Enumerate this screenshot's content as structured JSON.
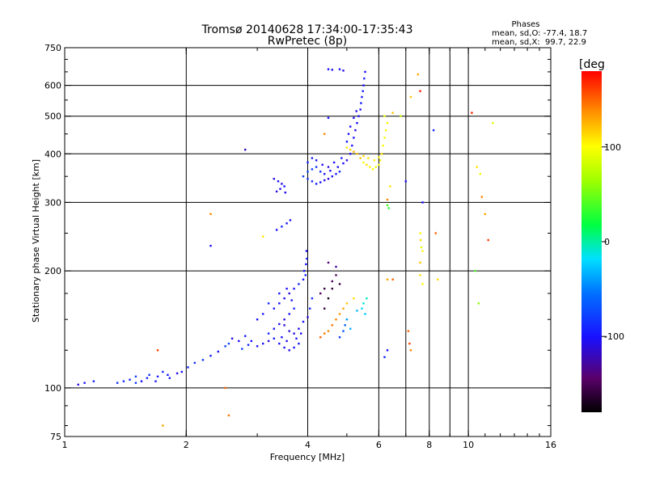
{
  "chart_data": {
    "type": "scatter",
    "title": "Tromsø 20140628 17:34:00-17:35:43",
    "subtitle": "RwPretec (8p)",
    "xlabel": "Frequency [MHz]",
    "ylabel": "Stationary phase Virtual Height [km]",
    "x_scale": "log",
    "y_scale": "log",
    "xlim": [
      1,
      16
    ],
    "ylim": [
      75,
      750
    ],
    "x_ticks": [
      1,
      2,
      4,
      6,
      8,
      10,
      16
    ],
    "x_tick_labels": [
      "1",
      "2",
      "4",
      "6",
      "8",
      "10",
      "16"
    ],
    "x_gridlines": [
      2,
      4,
      6,
      7,
      8,
      9,
      10
    ],
    "y_ticks": [
      75,
      100,
      200,
      300,
      400,
      500,
      600,
      750
    ],
    "y_tick_labels": [
      "75",
      "100",
      "200",
      "300",
      "400",
      "500",
      "600",
      "750"
    ],
    "y_gridlines": [
      100,
      200,
      300,
      400,
      500,
      600
    ],
    "grid": true,
    "stats": {
      "header": "Phases",
      "line_o": "mean, sd,O: -77.4, 18.7",
      "line_x": "mean, sd,X:  99.7, 22.9"
    },
    "colorbar": {
      "label": "[deg",
      "range": [
        -180,
        180
      ],
      "ticks": [
        100,
        0,
        -100
      ],
      "tick_labels": [
        "100",
        "0",
        "-100"
      ]
    },
    "series": [
      {
        "points": [
          [
            1.08,
            102,
            -110
          ],
          [
            1.12,
            103,
            -100
          ],
          [
            1.18,
            104,
            -95
          ],
          [
            1.35,
            103,
            -85
          ],
          [
            1.4,
            104,
            -88
          ],
          [
            1.45,
            105,
            -92
          ],
          [
            1.5,
            103,
            -84
          ],
          [
            1.55,
            104,
            -100
          ],
          [
            1.6,
            106,
            -90
          ],
          [
            1.7,
            107,
            -95
          ],
          [
            1.8,
            108,
            -100
          ],
          [
            1.9,
            109,
            -105
          ],
          [
            1.5,
            107,
            -80
          ],
          [
            1.62,
            108,
            -86
          ],
          [
            1.75,
            110,
            -90
          ],
          [
            1.68,
            104,
            -97
          ],
          [
            1.82,
            106,
            -94
          ],
          [
            1.95,
            110,
            -100
          ],
          [
            2.02,
            113,
            -90
          ],
          [
            2.1,
            116,
            -85
          ],
          [
            2.2,
            118,
            -80
          ],
          [
            2.3,
            121,
            -95
          ],
          [
            2.4,
            124,
            -100
          ],
          [
            2.5,
            128,
            -80
          ],
          [
            2.55,
            130,
            -75
          ],
          [
            2.6,
            134,
            -110
          ],
          [
            2.7,
            132,
            -105
          ],
          [
            2.8,
            136,
            -95
          ],
          [
            2.9,
            132,
            -100
          ],
          [
            2.75,
            126,
            -80
          ],
          [
            2.85,
            129,
            -90
          ],
          [
            3.0,
            128,
            -105
          ],
          [
            3.1,
            130,
            -100
          ],
          [
            3.2,
            132,
            -110
          ],
          [
            3.3,
            134,
            -95
          ],
          [
            3.4,
            130,
            -100
          ],
          [
            3.5,
            127,
            -105
          ],
          [
            3.6,
            125,
            -108
          ],
          [
            3.7,
            127,
            -100
          ],
          [
            3.8,
            130,
            -95
          ],
          [
            3.2,
            138,
            -92
          ],
          [
            3.3,
            142,
            -100
          ],
          [
            3.4,
            146,
            -105
          ],
          [
            3.5,
            150,
            -110
          ],
          [
            3.6,
            155,
            -100
          ],
          [
            3.7,
            160,
            -90
          ],
          [
            3.3,
            160,
            -95
          ],
          [
            3.4,
            165,
            -100
          ],
          [
            3.5,
            170,
            -105
          ],
          [
            3.6,
            175,
            -110
          ],
          [
            3.7,
            180,
            -100
          ],
          [
            3.8,
            185,
            -90
          ],
          [
            3.9,
            190,
            -100
          ],
          [
            3.95,
            195,
            -95
          ],
          [
            3.92,
            200,
            -100
          ],
          [
            3.96,
            208,
            -100
          ],
          [
            3.98,
            215,
            -95
          ],
          [
            3.97,
            225,
            -100
          ],
          [
            3.5,
            145,
            -115
          ],
          [
            3.6,
            140,
            -112
          ],
          [
            3.7,
            138,
            -108
          ],
          [
            3.8,
            142,
            -104
          ],
          [
            3.9,
            148,
            -100
          ],
          [
            4.0,
            152,
            -110
          ],
          [
            3.0,
            150,
            -100
          ],
          [
            3.1,
            155,
            -95
          ],
          [
            3.2,
            165,
            -88
          ],
          [
            3.4,
            175,
            -98
          ],
          [
            3.55,
            180,
            -102
          ],
          [
            3.65,
            168,
            -106
          ],
          [
            3.45,
            135,
            -100
          ],
          [
            3.55,
            132,
            -110
          ],
          [
            3.75,
            134,
            -96
          ],
          [
            3.85,
            138,
            -104
          ],
          [
            4.05,
            160,
            -90
          ],
          [
            4.1,
            170,
            -85
          ],
          [
            3.35,
            255,
            -100
          ],
          [
            3.45,
            260,
            -95
          ],
          [
            3.55,
            265,
            -100
          ],
          [
            3.62,
            270,
            -100
          ],
          [
            3.35,
            320,
            -110
          ],
          [
            3.42,
            325,
            -105
          ],
          [
            3.5,
            330,
            -100
          ],
          [
            3.45,
            335,
            -110
          ],
          [
            3.52,
            318,
            -106
          ],
          [
            3.38,
            340,
            -100
          ],
          [
            3.3,
            345,
            -112
          ],
          [
            3.9,
            350,
            -80
          ],
          [
            4.0,
            345,
            -85
          ],
          [
            4.1,
            340,
            -90
          ],
          [
            4.2,
            335,
            -95
          ],
          [
            4.3,
            338,
            -100
          ],
          [
            4.4,
            342,
            -105
          ],
          [
            4.5,
            345,
            -110
          ],
          [
            4.6,
            350,
            -100
          ],
          [
            4.7,
            355,
            -95
          ],
          [
            4.8,
            360,
            -90
          ],
          [
            4.0,
            360,
            -75
          ],
          [
            4.1,
            365,
            -80
          ],
          [
            4.2,
            370,
            -85
          ],
          [
            4.3,
            360,
            -90
          ],
          [
            4.4,
            355,
            -95
          ],
          [
            4.55,
            362,
            -100
          ],
          [
            4.75,
            370,
            -105
          ],
          [
            4.9,
            378,
            -100
          ],
          [
            5.0,
            385,
            -110
          ],
          [
            4.0,
            380,
            -90
          ],
          [
            4.1,
            390,
            -95
          ],
          [
            4.2,
            385,
            -100
          ],
          [
            4.35,
            375,
            -105
          ],
          [
            4.5,
            370,
            -110
          ],
          [
            4.65,
            380,
            -100
          ],
          [
            4.85,
            390,
            -95
          ],
          [
            5.1,
            400,
            -100
          ],
          [
            5.15,
            420,
            -105
          ],
          [
            5.2,
            440,
            -100
          ],
          [
            5.25,
            460,
            -110
          ],
          [
            5.3,
            480,
            -100
          ],
          [
            5.35,
            500,
            -105
          ],
          [
            5.4,
            520,
            -100
          ],
          [
            5.42,
            540,
            -95
          ],
          [
            5.45,
            560,
            -100
          ],
          [
            5.48,
            580,
            -95
          ],
          [
            5.5,
            600,
            -100
          ],
          [
            5.52,
            625,
            -95
          ],
          [
            5.55,
            650,
            -100
          ],
          [
            5.0,
            430,
            -95
          ],
          [
            5.05,
            450,
            -100
          ],
          [
            5.1,
            470,
            -105
          ],
          [
            5.2,
            495,
            -100
          ],
          [
            5.28,
            515,
            -108
          ],
          [
            4.5,
            660,
            -100
          ],
          [
            4.6,
            658,
            -105
          ],
          [
            4.8,
            660,
            -100
          ],
          [
            4.9,
            655,
            -110
          ],
          [
            5.5,
            165,
            -10
          ],
          [
            5.6,
            170,
            -5
          ],
          [
            5.45,
            160,
            -20
          ],
          [
            5.3,
            158,
            -30
          ],
          [
            5.55,
            155,
            -25
          ],
          [
            5.0,
            150,
            -40
          ],
          [
            4.95,
            145,
            -60
          ],
          [
            4.9,
            140,
            -70
          ],
          [
            4.8,
            135,
            -80
          ],
          [
            5.1,
            142,
            -35
          ],
          [
            4.3,
            135,
            150
          ],
          [
            4.4,
            138,
            145
          ],
          [
            4.5,
            140,
            140
          ],
          [
            4.6,
            145,
            145
          ],
          [
            4.7,
            150,
            140
          ],
          [
            4.8,
            155,
            135
          ],
          [
            4.9,
            160,
            130
          ],
          [
            5.0,
            165,
            120
          ],
          [
            5.2,
            170,
            110
          ],
          [
            4.4,
            160,
            -160
          ],
          [
            4.5,
            170,
            -170
          ],
          [
            4.3,
            175,
            -150
          ],
          [
            4.6,
            180,
            -160
          ],
          [
            4.8,
            185,
            -160
          ],
          [
            4.7,
            195,
            -150
          ],
          [
            5.5,
            380,
            100
          ],
          [
            5.6,
            375,
            110
          ],
          [
            5.7,
            370,
            105
          ],
          [
            5.8,
            365,
            100
          ],
          [
            5.9,
            370,
            95
          ],
          [
            6.0,
            375,
            100
          ],
          [
            6.05,
            385,
            105
          ],
          [
            6.1,
            400,
            110
          ],
          [
            6.15,
            420,
            100
          ],
          [
            6.2,
            440,
            95
          ],
          [
            6.25,
            460,
            105
          ],
          [
            6.3,
            480,
            100
          ],
          [
            6.2,
            500,
            95
          ],
          [
            5.4,
            390,
            120
          ],
          [
            5.5,
            395,
            115
          ],
          [
            5.65,
            390,
            110
          ],
          [
            5.85,
            385,
            105
          ],
          [
            6.0,
            392,
            100
          ],
          [
            5.3,
            400,
            120
          ],
          [
            5.2,
            405,
            125
          ],
          [
            5.1,
            410,
            115
          ],
          [
            5.0,
            415,
            110
          ],
          [
            6.5,
            510,
            120
          ],
          [
            6.8,
            500,
            80
          ],
          [
            7.2,
            560,
            120
          ],
          [
            7.5,
            640,
            130
          ],
          [
            7.6,
            580,
            170
          ],
          [
            6.3,
            305,
            140
          ],
          [
            6.4,
            330,
            110
          ],
          [
            6.3,
            295,
            40
          ],
          [
            6.35,
            290,
            30
          ],
          [
            7.6,
            250,
            100
          ],
          [
            7.62,
            240,
            110
          ],
          [
            7.65,
            230,
            90
          ],
          [
            7.7,
            225,
            105
          ],
          [
            7.6,
            210,
            120
          ],
          [
            7.6,
            195,
            110
          ],
          [
            7.7,
            185,
            100
          ],
          [
            6.3,
            190,
            130
          ],
          [
            6.5,
            190,
            150
          ],
          [
            7.1,
            140,
            150
          ],
          [
            7.15,
            130,
            160
          ],
          [
            7.2,
            125,
            140
          ],
          [
            6.3,
            125,
            -100
          ],
          [
            6.2,
            120,
            -90
          ],
          [
            7.0,
            340,
            -100
          ],
          [
            7.7,
            300,
            -100
          ],
          [
            8.2,
            460,
            -90
          ],
          [
            8.3,
            250,
            150
          ],
          [
            8.4,
            190,
            110
          ],
          [
            10.5,
            370,
            110
          ],
          [
            10.7,
            355,
            95
          ],
          [
            10.8,
            310,
            140
          ],
          [
            11.0,
            280,
            130
          ],
          [
            11.5,
            480,
            90
          ],
          [
            11.2,
            240,
            160
          ],
          [
            10.4,
            200,
            40
          ],
          [
            10.6,
            165,
            60
          ],
          [
            10.2,
            510,
            170
          ],
          [
            1.75,
            80,
            130
          ],
          [
            1.7,
            125,
            160
          ],
          [
            2.5,
            100,
            150
          ],
          [
            2.55,
            85,
            145
          ],
          [
            2.3,
            232,
            -100
          ],
          [
            2.8,
            410,
            -120
          ],
          [
            2.3,
            280,
            140
          ],
          [
            3.1,
            245,
            110
          ],
          [
            4.4,
            450,
            140
          ],
          [
            4.5,
            495,
            -100
          ],
          [
            4.7,
            205,
            -130
          ],
          [
            4.5,
            210,
            -140
          ],
          [
            4.6,
            188,
            -150
          ],
          [
            4.4,
            180,
            -160
          ]
        ]
      }
    ]
  }
}
